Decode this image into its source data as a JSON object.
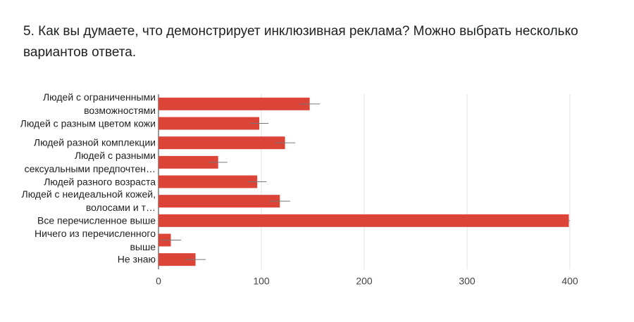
{
  "header": {
    "title": "5. Как вы думаете, что демонстрирует инклюзивная реклама? Можно выбрать несколько вариантов ответа."
  },
  "chart_data": {
    "type": "bar",
    "orientation": "horizontal",
    "categories": [
      "Людей с ограниченными\nвозможностями",
      "Людей с разным цветом кожи",
      "Людей разной комплекции",
      "Людей с разными\nсексуальными предпочтен…",
      "Людей разного возраста",
      "Людей с неидеальной кожей,\nволосами и т…",
      "Все перечисленное выше",
      "Ничего из перечисленного\nвыше",
      "Не знаю"
    ],
    "values": [
      147,
      98,
      123,
      58,
      96,
      118,
      399,
      12,
      36
    ],
    "errors": [
      10,
      9,
      10,
      9,
      9,
      10,
      1,
      10,
      10
    ],
    "color": "#db4437",
    "xlim": [
      0,
      400
    ],
    "xticks": [
      0,
      100,
      200,
      300,
      400
    ],
    "grid": true
  }
}
